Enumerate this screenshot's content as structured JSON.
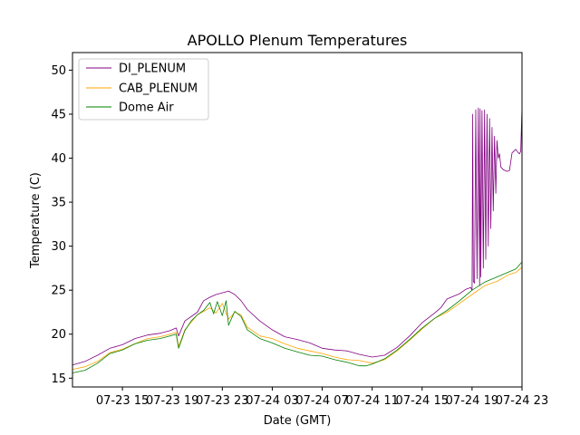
{
  "chart_data": {
    "type": "line",
    "title": "APOLLO Plenum Temperatures",
    "xlabel": "Date (GMT)",
    "ylabel": "Temperature (C)",
    "x_unit": "hours since 07-23 11:00 GMT",
    "xlim": [
      0,
      36
    ],
    "ylim": [
      14,
      52
    ],
    "yticks": [
      15,
      20,
      25,
      30,
      35,
      40,
      45,
      50
    ],
    "xticks": [
      {
        "value": 4,
        "label": "07-23 15"
      },
      {
        "value": 8,
        "label": "07-23 19"
      },
      {
        "value": 12,
        "label": "07-23 23"
      },
      {
        "value": 16,
        "label": "07-24 03"
      },
      {
        "value": 20,
        "label": "07-24 07"
      },
      {
        "value": 24,
        "label": "07-24 11"
      },
      {
        "value": 28,
        "label": "07-24 15"
      },
      {
        "value": 32,
        "label": "07-24 19"
      },
      {
        "value": 36,
        "label": "07-24 23"
      }
    ],
    "legend": "upper-left",
    "series": [
      {
        "name": "DI_PLENUM",
        "color": "#800080",
        "x": [
          0,
          1,
          2,
          3,
          4,
          5,
          6,
          7,
          7.8,
          8.3,
          8.5,
          9,
          10,
          10.5,
          11,
          11.5,
          12,
          12.5,
          13,
          13.5,
          14,
          15,
          16,
          17,
          18,
          19,
          20,
          21,
          22,
          23,
          24,
          25,
          26,
          27,
          28,
          29,
          29.5,
          30,
          30.5,
          31,
          31.5,
          31.9,
          32,
          32.05,
          32.1,
          32.2,
          32.3,
          32.4,
          32.5,
          32.6,
          32.65,
          32.7,
          32.8,
          32.9,
          33.0,
          33.1,
          33.2,
          33.3,
          33.4,
          33.5,
          33.6,
          33.7,
          33.8,
          33.9,
          34.0,
          34.1,
          34.2,
          34.3,
          34.5,
          34.8,
          35,
          35.2,
          35.5,
          35.7,
          35.8,
          35.9,
          36
        ],
        "y": [
          16.5,
          16.9,
          17.6,
          18.4,
          18.8,
          19.5,
          19.9,
          20.1,
          20.4,
          20.7,
          19.8,
          21.5,
          22.5,
          23.8,
          24.2,
          24.5,
          24.7,
          24.9,
          24.5,
          23.8,
          22.8,
          21.5,
          20.5,
          19.7,
          19.4,
          19.0,
          18.4,
          18.2,
          18.1,
          17.7,
          17.4,
          17.6,
          18.5,
          19.8,
          21.3,
          22.4,
          23.0,
          24.0,
          24.3,
          24.6,
          25.1,
          25.3,
          25.0,
          45.0,
          26.0,
          25.8,
          45.5,
          26.3,
          45.7,
          25.5,
          45.6,
          26.5,
          45.4,
          27.5,
          45.5,
          28.5,
          45.0,
          30.0,
          44.5,
          32.0,
          43.5,
          34.0,
          42.5,
          36.0,
          42.0,
          40.0,
          40.5,
          39.0,
          38.7,
          38.5,
          38.6,
          40.6,
          41.0,
          40.6,
          40.5,
          40.8,
          45.8
        ]
      },
      {
        "name": "CAB_PLENUM",
        "color": "#FFA500",
        "x": [
          0,
          1,
          2,
          3,
          4,
          5,
          6,
          7,
          7.8,
          8.3,
          8.5,
          9,
          10,
          10.5,
          11,
          11.5,
          12,
          12.5,
          13,
          13.5,
          14,
          15,
          16,
          17,
          18,
          19,
          20,
          21,
          22,
          23,
          24,
          25,
          26,
          27,
          28,
          29,
          30,
          31,
          32,
          33,
          34,
          35,
          35.5,
          36
        ],
        "y": [
          16.0,
          16.3,
          16.9,
          17.9,
          18.3,
          18.9,
          19.5,
          19.7,
          20.0,
          20.2,
          18.6,
          20.5,
          22.2,
          22.6,
          23.0,
          22.4,
          23.5,
          21.7,
          22.5,
          22.2,
          20.8,
          19.8,
          19.5,
          18.9,
          18.4,
          18.1,
          17.8,
          17.4,
          17.1,
          17.0,
          16.7,
          17.1,
          18.1,
          19.3,
          20.6,
          21.8,
          22.5,
          23.5,
          24.5,
          25.5,
          26.0,
          26.8,
          27.0,
          27.6
        ]
      },
      {
        "name": "Dome Air",
        "color": "#008000",
        "x": [
          0,
          1,
          2,
          3,
          4,
          5,
          6,
          7,
          7.8,
          8.3,
          8.5,
          9,
          9.5,
          10,
          10.5,
          11,
          11.3,
          11.6,
          12,
          12.3,
          12.5,
          12.8,
          13,
          13.5,
          14,
          15,
          16,
          17,
          18,
          19,
          20,
          21,
          22,
          23,
          23.5,
          24,
          25,
          26,
          27,
          28,
          29,
          30,
          31,
          32,
          33,
          34,
          35,
          35.5,
          36
        ],
        "y": [
          15.6,
          15.9,
          16.7,
          17.8,
          18.2,
          18.9,
          19.3,
          19.5,
          19.8,
          20.0,
          18.4,
          20.4,
          21.5,
          22.2,
          22.7,
          23.6,
          22.3,
          23.7,
          22.1,
          23.8,
          21.0,
          22.0,
          22.6,
          22.0,
          20.5,
          19.5,
          19.0,
          18.4,
          18.0,
          17.6,
          17.5,
          17.1,
          16.8,
          16.4,
          16.4,
          16.6,
          17.2,
          18.2,
          19.4,
          20.7,
          21.8,
          22.7,
          23.8,
          25.0,
          25.9,
          26.5,
          27.1,
          27.4,
          28.2
        ]
      }
    ]
  }
}
